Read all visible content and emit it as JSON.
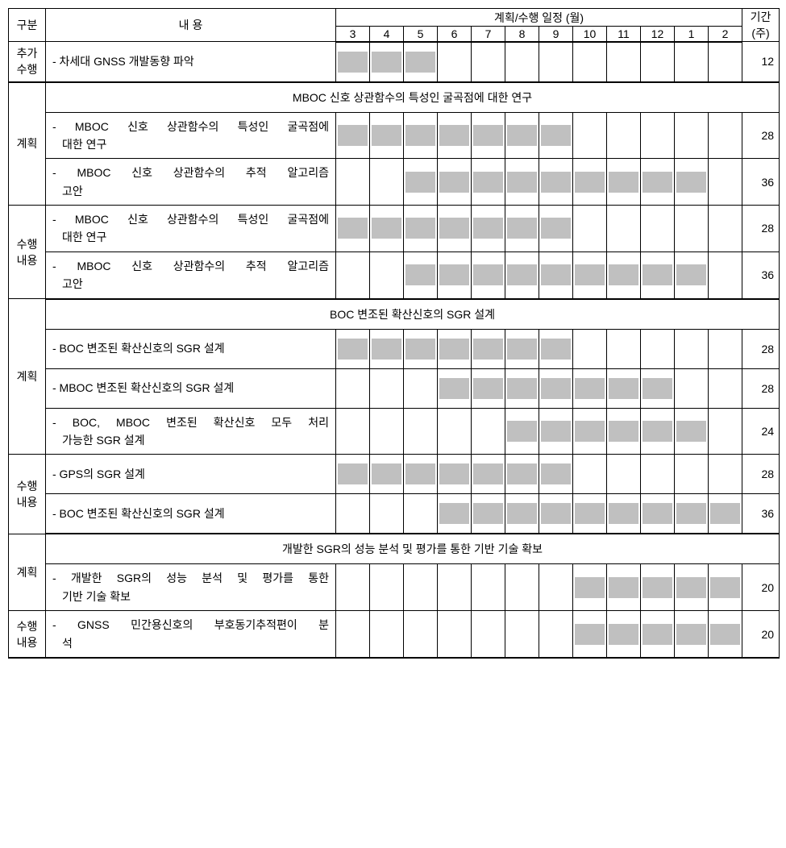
{
  "colors": {
    "bar": "#c0c0c0",
    "border": "#000000",
    "bg": "#ffffff"
  },
  "header": {
    "category": "구분",
    "content": "내 용",
    "schedule": "계획/수행 일정 (월)",
    "duration_top": "기간",
    "duration_bottom": "(주)",
    "months": [
      "3",
      "4",
      "5",
      "6",
      "7",
      "8",
      "9",
      "10",
      "11",
      "12",
      "1",
      "2"
    ]
  },
  "labels": {
    "extra_perform": "추가\n수행",
    "plan": "계획",
    "perform": "수행\n내용"
  },
  "sections": [
    {
      "rows": [
        {
          "group": "extra_perform",
          "desc": "- 차세대 GNSS 개발동향 파악",
          "bar_start": 0,
          "bar_end": 3,
          "duration": "12",
          "tall": false
        }
      ]
    },
    {
      "title": "MBOC 신호 상관함수의 특성인 굴곡점에 대한 연구",
      "plan_rows": [
        {
          "desc_lines": [
            "- MBOC 신호 상관함수의 특성인 굴곡점에",
            "대한 연구"
          ],
          "bar_start": 0,
          "bar_end": 7,
          "duration": "28"
        },
        {
          "desc_lines": [
            "- MBOC 신호 상관함수의 추적 알고리즘",
            "고안"
          ],
          "bar_start": 2,
          "bar_end": 11,
          "duration": "36"
        }
      ],
      "perform_rows": [
        {
          "desc_lines": [
            "- MBOC 신호 상관함수의 특성인 굴곡점에",
            "대한 연구"
          ],
          "bar_start": 0,
          "bar_end": 7,
          "duration": "28"
        },
        {
          "desc_lines": [
            "- MBOC 신호 상관함수의 추적 알고리즘",
            "고안"
          ],
          "bar_start": 2,
          "bar_end": 11,
          "duration": "36"
        }
      ]
    },
    {
      "title": "BOC 변조된 확산신호의 SGR 설계",
      "plan_rows": [
        {
          "desc_lines": [
            "- BOC 변조된 확산신호의 SGR 설계"
          ],
          "bar_start": 0,
          "bar_end": 7,
          "duration": "28"
        },
        {
          "desc_lines": [
            "- MBOC 변조된 확산신호의 SGR 설계"
          ],
          "bar_start": 3,
          "bar_end": 10,
          "duration": "28"
        },
        {
          "desc_lines": [
            "- BOC, MBOC 변조된 확산신호 모두 처리",
            "가능한 SGR 설계"
          ],
          "bar_start": 5,
          "bar_end": 11,
          "duration": "24"
        }
      ],
      "perform_rows": [
        {
          "desc_lines": [
            "- GPS의 SGR 설계"
          ],
          "bar_start": 0,
          "bar_end": 7,
          "duration": "28"
        },
        {
          "desc_lines": [
            "- BOC 변조된 확산신호의 SGR 설계"
          ],
          "bar_start": 3,
          "bar_end": 12,
          "duration": "36"
        }
      ]
    },
    {
      "title": "개발한 SGR의 성능 분석 및 평가를 통한 기반 기술 확보",
      "plan_rows": [
        {
          "desc_lines": [
            "- 개발한 SGR의 성능 분석 및 평가를 통한",
            "기반 기술 확보"
          ],
          "bar_start": 7,
          "bar_end": 12,
          "duration": "20"
        }
      ],
      "perform_rows": [
        {
          "desc_lines": [
            "- GNSS 민간용신호의 부호동기추적편이 분",
            "석"
          ],
          "bar_start": 7,
          "bar_end": 12,
          "duration": "20"
        }
      ]
    }
  ]
}
